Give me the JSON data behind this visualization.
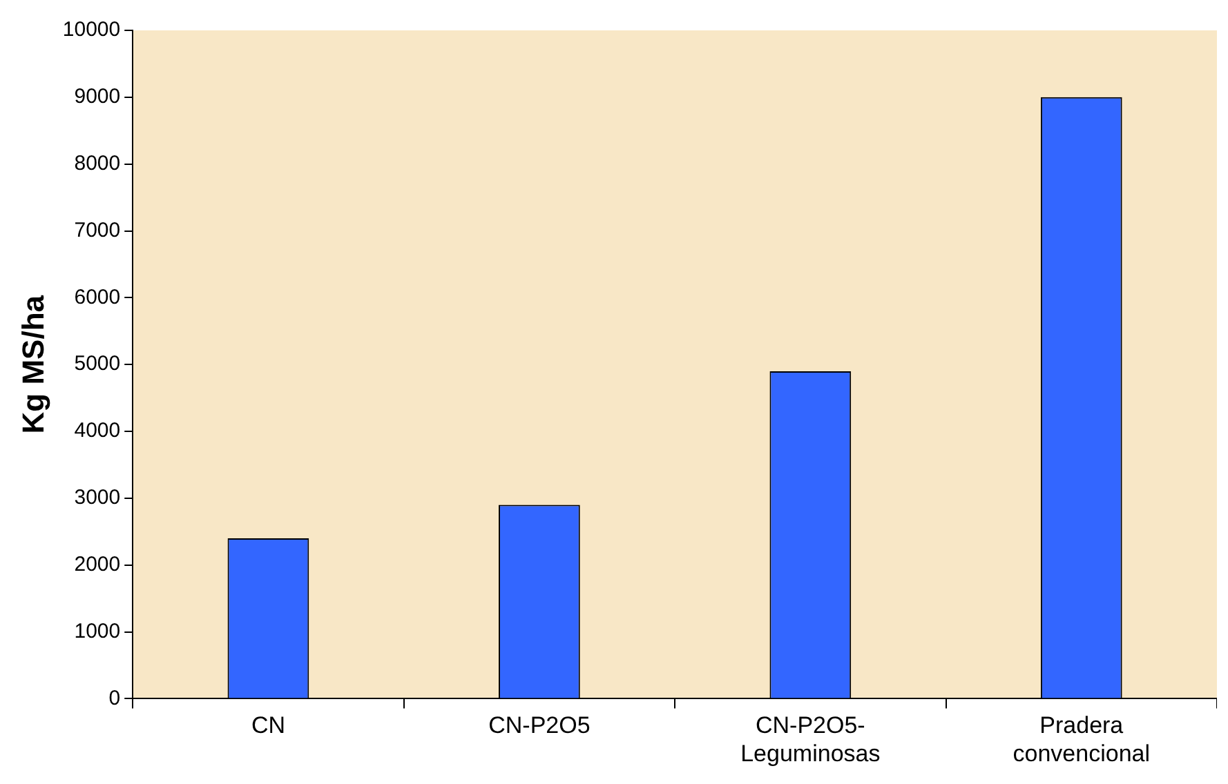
{
  "chart_data": {
    "type": "bar",
    "ylabel": "Kg MS/ha",
    "categories": [
      "CN",
      "CN-P2O5",
      "CN-P2O5-Leguminosas",
      "Pradera convencional"
    ],
    "values": [
      2400,
      2900,
      4900,
      9000
    ],
    "color": "#3366ff",
    "ylim": [
      0,
      10000
    ],
    "yticks": [
      0,
      1000,
      2000,
      3000,
      4000,
      5000,
      6000,
      7000,
      8000,
      9000,
      10000
    ],
    "grid": false
  }
}
